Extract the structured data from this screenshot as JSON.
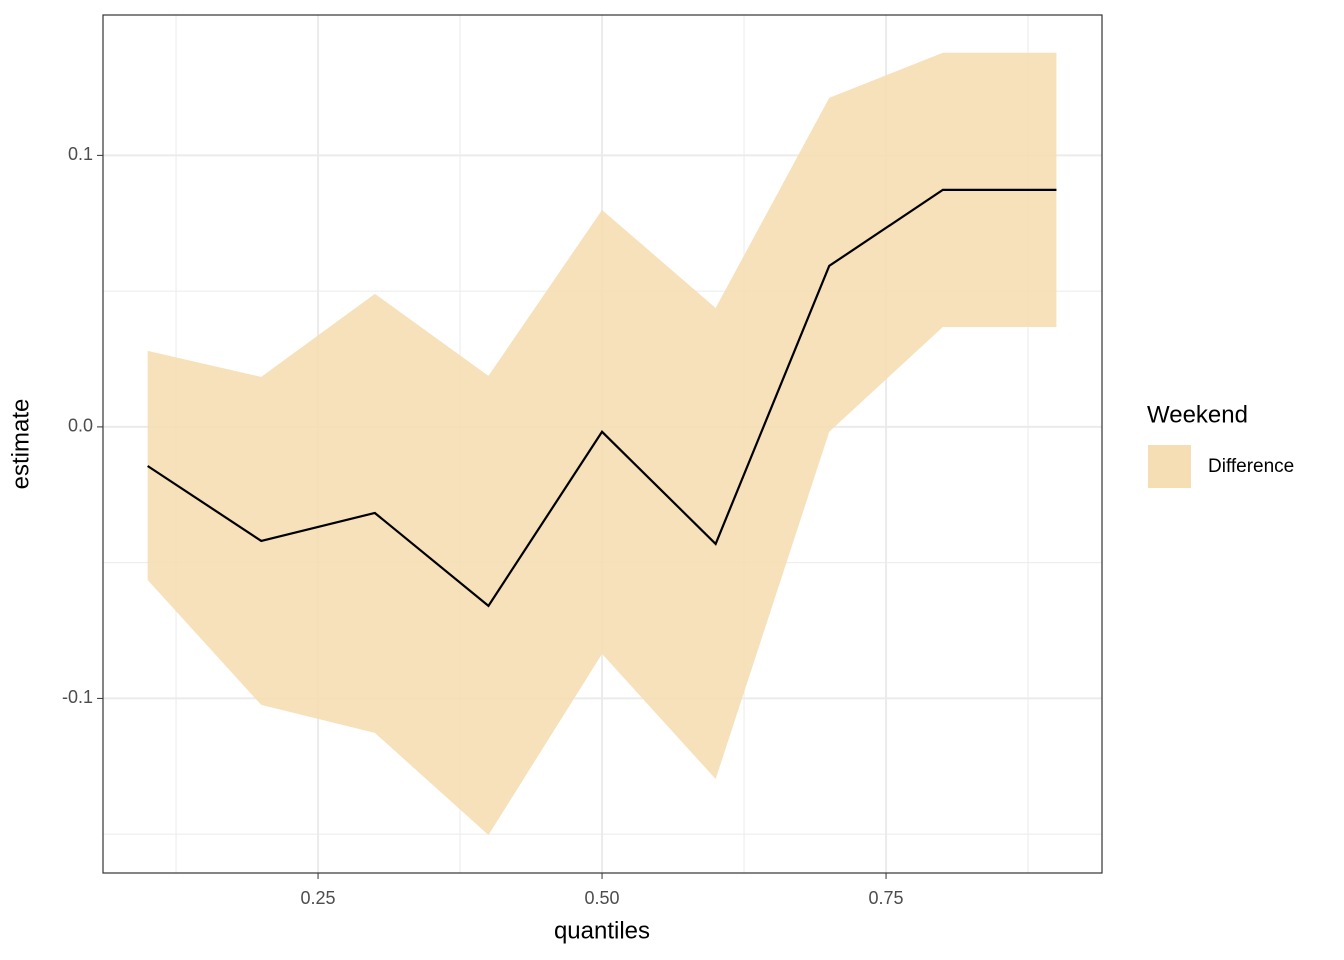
{
  "chart_data": {
    "type": "line",
    "x_label": "quantiles",
    "y_label": "estimate",
    "legend_title": "Weekend",
    "x": [
      0.1,
      0.2,
      0.3,
      0.4,
      0.5,
      0.6,
      0.7,
      0.8,
      0.9
    ],
    "series": [
      {
        "name": "Difference",
        "color": "#f5deb3",
        "line_color": "#000000",
        "values": [
          -0.0144,
          -0.042,
          -0.0317,
          -0.0659,
          -0.0018,
          -0.0431,
          0.0593,
          0.0873,
          0.0873
        ],
        "upper": [
          0.028,
          0.0184,
          0.049,
          0.0188,
          0.0799,
          0.0438,
          0.1212,
          0.1378,
          0.1378
        ],
        "lower": [
          -0.0564,
          -0.1024,
          -0.1127,
          -0.1503,
          -0.0836,
          -0.1297,
          -0.0018,
          0.0368,
          0.0368
        ]
      }
    ],
    "xlim": [
      0.0607,
      0.9401
    ],
    "ylim": [
      -0.1643,
      0.1517
    ],
    "xticks": [
      0.25,
      {
        "value": 0.5,
        "label": "0.50"
      },
      0.75
    ],
    "yticks": [
      -0.1,
      {
        "value": 0,
        "label": "0.0"
      },
      0.1
    ],
    "xminor": [
      0.125,
      0.375,
      0.625,
      0.875
    ],
    "yminor": [
      -0.15,
      -0.05,
      0.05
    ],
    "grid": true
  }
}
